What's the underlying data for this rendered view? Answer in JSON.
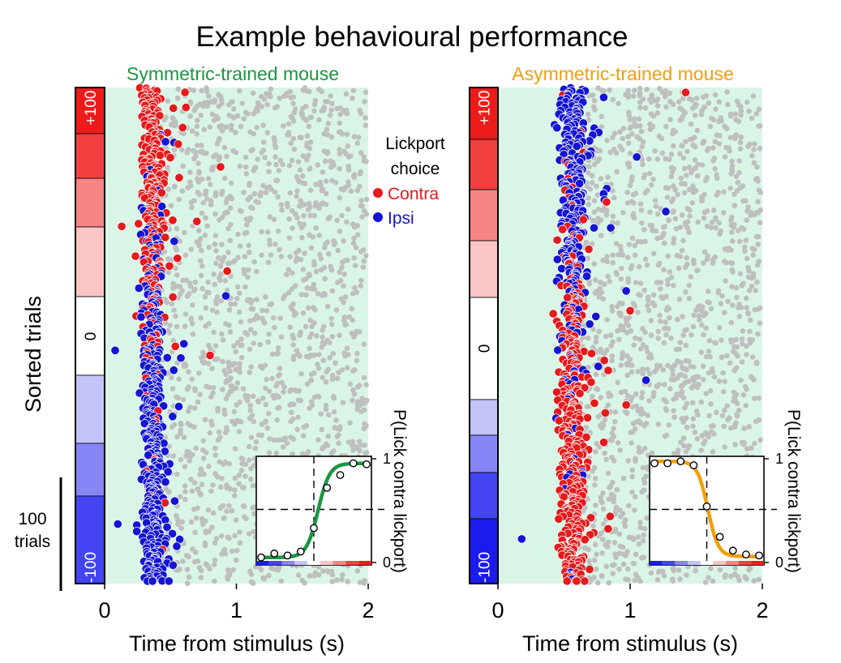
{
  "figure": {
    "title": "Example behavioural performance",
    "ylabel": "Sorted trials",
    "scalebar_label_line1": "100",
    "scalebar_label_line2": "trials",
    "legend": {
      "title_line1": "Lickport",
      "title_line2": "choice",
      "items": [
        {
          "label": "Contra",
          "color": "#e41a1c"
        },
        {
          "label": "Ipsi",
          "color": "#1414d2"
        }
      ]
    },
    "colors": {
      "contra": "#e41a1c",
      "ipsi": "#1414d2",
      "nolick": "#bfbfbf",
      "panel_bg": "#d9f5e6",
      "symmetric": "#1a9641",
      "asymmetric": "#f29e0c"
    }
  },
  "chart_data": [
    {
      "type": "scatter",
      "title": "Symmetric-trained mouse",
      "title_color": "#1a9641",
      "xlabel": "Time from stimulus (s)",
      "ylabel": "Sorted trials",
      "xlim": [
        0,
        2
      ],
      "xticks": [
        0,
        1,
        2
      ],
      "contrast_labels": [
        "+100",
        "0",
        "-100"
      ],
      "contrast_blocks": [
        {
          "contrast": 100,
          "color": "#ee1b1b"
        },
        {
          "contrast": 75,
          "color": "#f2403f"
        },
        {
          "contrast": 50,
          "color": "#f68585"
        },
        {
          "contrast": 25,
          "color": "#fbc4c5"
        },
        {
          "contrast": 0,
          "color": "#ffffff"
        },
        {
          "contrast": -25,
          "color": "#c3c4fa"
        },
        {
          "contrast": -50,
          "color": "#8686f6"
        },
        {
          "contrast": -75,
          "color": "#4344f2"
        },
        {
          "contrast": -100,
          "color": "#1b1bee"
        }
      ],
      "series": [
        {
          "name": "Contra",
          "color": "#e41a1c",
          "lick_time_median_s": 0.37,
          "predominant_trials": "+100 to 0"
        },
        {
          "name": "Ipsi",
          "color": "#1414d2",
          "lick_time_median_s": 0.4,
          "predominant_trials": "0 to -100"
        },
        {
          "name": "No lick (grey)",
          "color": "#bfbfbf",
          "time_range_s": [
            0.4,
            2.0
          ]
        }
      ],
      "sparse_points": [
        {
          "series": "Contra",
          "time_s": 0.88,
          "trial_frac": 0.16
        },
        {
          "series": "Contra",
          "time_s": 0.93,
          "trial_frac": 0.37
        },
        {
          "series": "Ipsi",
          "time_s": 0.92,
          "trial_frac": 0.42
        },
        {
          "series": "Contra",
          "time_s": 0.7,
          "trial_frac": 0.27
        },
        {
          "series": "Contra",
          "time_s": 0.8,
          "trial_frac": 0.54
        },
        {
          "series": "Contra",
          "time_s": 0.13,
          "trial_frac": 0.28
        },
        {
          "series": "Ipsi",
          "time_s": 0.08,
          "trial_frac": 0.53
        },
        {
          "series": "Ipsi",
          "time_s": 0.1,
          "trial_frac": 0.88
        }
      ],
      "inset": {
        "type": "line",
        "ylabel": "P(Lick contra lickport)",
        "yticks": [
          0,
          1
        ],
        "curve_color": "#1a9641",
        "x": [
          -100,
          -75,
          -50,
          -25,
          0,
          25,
          50,
          75,
          100
        ],
        "values": [
          0.01,
          0.05,
          0.03,
          0.07,
          0.31,
          0.72,
          0.85,
          0.97,
          0.96
        ]
      }
    },
    {
      "type": "scatter",
      "title": "Asymmetric-trained mouse",
      "title_color": "#f29e0c",
      "xlabel": "Time from stimulus (s)",
      "ylabel": "",
      "xlim": [
        0,
        2
      ],
      "xticks": [
        0,
        1,
        2
      ],
      "contrast_labels": [
        "+100",
        "0",
        "-100"
      ],
      "contrast_blocks": [
        {
          "contrast": 100,
          "color": "#ee1b1b"
        },
        {
          "contrast": 75,
          "color": "#f2403f"
        },
        {
          "contrast": 50,
          "color": "#f68585"
        },
        {
          "contrast": 25,
          "color": "#fbc4c5"
        },
        {
          "contrast": 0,
          "color": "#ffffff"
        },
        {
          "contrast": -25,
          "color": "#c3c4fa"
        },
        {
          "contrast": -50,
          "color": "#8686f6"
        },
        {
          "contrast": -75,
          "color": "#4344f2"
        },
        {
          "contrast": -100,
          "color": "#1b1bee"
        }
      ],
      "series": [
        {
          "name": "Ipsi",
          "color": "#1414d2",
          "lick_time_median_s": 0.55,
          "predominant_trials": "+100 to 0"
        },
        {
          "name": "Contra",
          "color": "#e41a1c",
          "lick_time_median_s": 0.57,
          "predominant_trials": "0 to -100"
        },
        {
          "name": "No lick (grey)",
          "color": "#bfbfbf",
          "time_range_s": [
            0.5,
            2.0
          ]
        }
      ],
      "sparse_points": [
        {
          "series": "Contra",
          "time_s": 1.42,
          "trial_frac": 0.01
        },
        {
          "series": "Ipsi",
          "time_s": 0.8,
          "trial_frac": 0.02
        },
        {
          "series": "Ipsi",
          "time_s": 1.05,
          "trial_frac": 0.14
        },
        {
          "series": "Ipsi",
          "time_s": 1.27,
          "trial_frac": 0.25
        },
        {
          "series": "Ipsi",
          "time_s": 0.97,
          "trial_frac": 0.41
        },
        {
          "series": "Contra",
          "time_s": 1.0,
          "trial_frac": 0.45
        },
        {
          "series": "Ipsi",
          "time_s": 1.12,
          "trial_frac": 0.59
        },
        {
          "series": "Ipsi",
          "time_s": 0.18,
          "trial_frac": 0.91
        },
        {
          "series": "Contra",
          "time_s": 0.97,
          "trial_frac": 0.64
        }
      ],
      "inset": {
        "type": "line",
        "ylabel": "P(Lick contra lickport)",
        "yticks": [
          0,
          1
        ],
        "curve_color": "#f29e0c",
        "x": [
          -100,
          -75,
          -50,
          -25,
          0,
          25,
          50,
          75,
          100
        ],
        "values": [
          0.97,
          0.97,
          0.99,
          0.95,
          0.53,
          0.22,
          0.08,
          0.04,
          0.03
        ]
      }
    }
  ]
}
